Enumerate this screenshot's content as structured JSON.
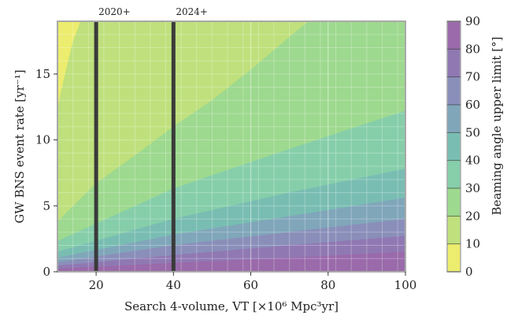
{
  "chart_data": {
    "type": "heatmap",
    "xlabel": "Search 4-volume, VT [×10⁶ Mpc³yr]",
    "ylabel": "GW BNS event rate [yr⁻¹]",
    "colorbar_label": "Beaming angle upper limit [°]",
    "xlim": [
      10,
      100
    ],
    "ylim": [
      0,
      19
    ],
    "xticks": [
      20,
      40,
      60,
      80,
      100
    ],
    "yticks": [
      0,
      5,
      10,
      15
    ],
    "colorbar_ticks": [
      0,
      10,
      20,
      30,
      40,
      50,
      60,
      70,
      80,
      90
    ],
    "grid": true,
    "contour_levels": [
      10,
      20,
      30,
      40,
      50,
      60,
      70,
      80,
      90
    ],
    "contour_boundaries": [
      {
        "level": 10,
        "x": [
          10,
          12,
          14,
          16,
          18
        ],
        "y": [
          12.4,
          15.0,
          17.4,
          19.0,
          19.0
        ]
      },
      {
        "level": 20,
        "x": [
          10,
          20,
          30,
          40,
          50,
          60,
          70,
          75
        ],
        "y": [
          3.8,
          6.7,
          8.8,
          11.0,
          13.0,
          15.3,
          17.8,
          19.0
        ]
      },
      {
        "level": 30,
        "x": [
          10,
          40,
          70,
          100
        ],
        "y": [
          2.3,
          6.3,
          9.3,
          12.2
        ]
      },
      {
        "level": 40,
        "x": [
          10,
          40,
          70,
          100
        ],
        "y": [
          1.5,
          4.0,
          6.0,
          7.8
        ]
      },
      {
        "level": 50,
        "x": [
          10,
          40,
          70,
          100
        ],
        "y": [
          1.05,
          2.8,
          4.2,
          5.6
        ]
      },
      {
        "level": 60,
        "x": [
          10,
          40,
          70,
          100
        ],
        "y": [
          0.7,
          2.0,
          3.0,
          4.0
        ]
      },
      {
        "level": 70,
        "x": [
          10,
          40,
          70,
          100
        ],
        "y": [
          0.45,
          1.25,
          2.0,
          2.7
        ]
      },
      {
        "level": 80,
        "x": [
          10,
          40,
          70,
          100
        ],
        "y": [
          0.22,
          0.65,
          1.05,
          1.5
        ]
      },
      {
        "level": 90,
        "x": [
          10,
          100
        ],
        "y": [
          0,
          0
        ]
      }
    ],
    "vertical_lines": [
      {
        "x": 20,
        "label": "2020+"
      },
      {
        "x": 40,
        "label": "2024+"
      }
    ],
    "colormap": [
      "#ecec6e",
      "#bfe07c",
      "#9dd98e",
      "#86ceaa",
      "#79bdb2",
      "#80a6ba",
      "#8a8fba",
      "#9079b3",
      "#9a6aaa"
    ]
  }
}
